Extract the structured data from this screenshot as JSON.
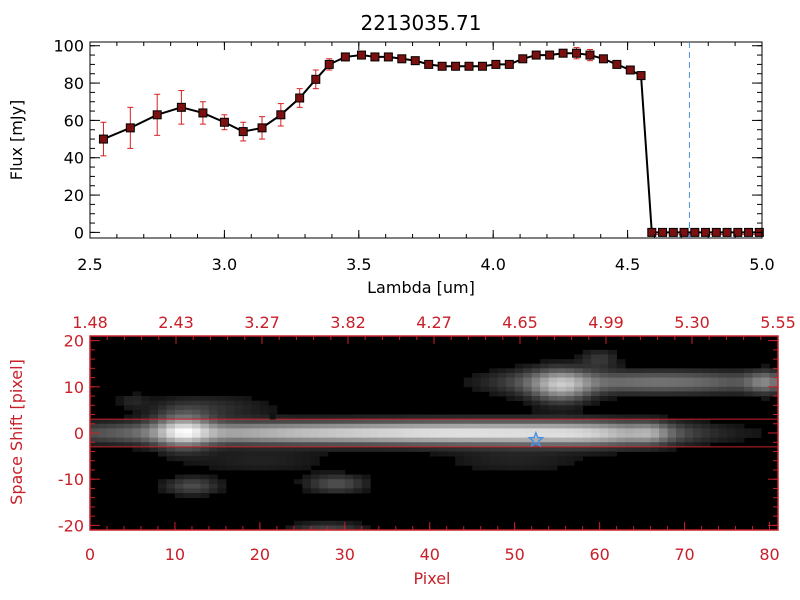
{
  "chart_data": [
    {
      "type": "line",
      "title": "2213035.71",
      "xlabel": "Lambda [um]",
      "ylabel": "Flux [mJy]",
      "xlim": [
        2.5,
        5.0
      ],
      "ylim": [
        -3,
        102
      ],
      "xticks": [
        "2.5",
        "3.0",
        "3.5",
        "4.0",
        "4.5",
        "5.0"
      ],
      "xtick_values": [
        2.5,
        3.0,
        3.5,
        4.0,
        4.5,
        5.0
      ],
      "yticks": [
        "0",
        "20",
        "40",
        "60",
        "80",
        "100"
      ],
      "ytick_values": [
        0,
        20,
        40,
        60,
        80,
        100
      ],
      "vline_x": 4.73,
      "colors": {
        "line": "#000000",
        "marker": "#7a1010",
        "errorbar": "#d42020",
        "vline": "#4a90e2",
        "zero_line": "#d42020"
      },
      "series": [
        {
          "x": [
            2.55,
            2.65,
            2.75,
            2.84,
            2.92,
            3.0,
            3.07,
            3.14,
            3.21,
            3.28,
            3.34,
            3.39,
            3.45,
            3.51,
            3.56,
            3.61,
            3.66,
            3.71,
            3.76,
            3.81,
            3.86,
            3.91,
            3.96,
            4.01,
            4.06,
            4.11,
            4.16,
            4.21,
            4.26,
            4.31,
            4.36,
            4.41,
            4.46,
            4.51,
            4.55,
            4.59,
            4.63,
            4.67,
            4.71,
            4.75,
            4.79,
            4.83,
            4.87,
            4.91,
            4.95,
            4.99
          ],
          "y": [
            50,
            56,
            63,
            67,
            64,
            59,
            54,
            56,
            63,
            72,
            82,
            90,
            94,
            95,
            94,
            94,
            93,
            92,
            90,
            89,
            89,
            89,
            89,
            90,
            90,
            93,
            95,
            95,
            96,
            96,
            95,
            93,
            90,
            87,
            84,
            0,
            0,
            0,
            0,
            0,
            0,
            0,
            0,
            0,
            0,
            0
          ],
          "yerr": [
            9,
            11,
            11,
            9,
            6,
            4,
            5,
            6,
            6,
            5,
            5,
            3,
            2,
            1,
            1,
            1,
            1,
            1,
            1,
            1,
            1,
            1,
            1,
            1,
            1,
            2,
            2,
            2,
            2,
            3,
            3,
            2,
            2,
            2,
            2,
            0,
            0,
            0,
            0,
            0,
            0,
            0,
            0,
            0,
            0,
            0
          ]
        }
      ]
    },
    {
      "type": "heatmap",
      "xlabel": "Pixel",
      "ylabel": "Space Shift [pixel]",
      "xlim": [
        0,
        81
      ],
      "ylim": [
        -21,
        21
      ],
      "xticks": [
        "0",
        "10",
        "20",
        "30",
        "40",
        "50",
        "60",
        "70",
        "80"
      ],
      "xtick_values": [
        0,
        10,
        20,
        30,
        40,
        50,
        60,
        70,
        80
      ],
      "yticks": [
        "-20",
        "-10",
        "0",
        "10",
        "20"
      ],
      "ytick_values": [
        -20,
        -10,
        0,
        10,
        20
      ],
      "top_axis_ticks": [
        "1.48",
        "2.43",
        "3.27",
        "3.82",
        "4.27",
        "4.65",
        "4.99",
        "5.30",
        "5.55"
      ],
      "hlines": [
        3,
        -3
      ],
      "star_marker": {
        "x": 52.5,
        "y": -1.5
      },
      "colors": {
        "axis": "#c8202a",
        "hline": "#c8202a",
        "star": "#4a90e2",
        "background": "#000000"
      },
      "blobs": [
        {
          "x": 11,
          "y": 0.5,
          "sx": 2.2,
          "sy": 2.6,
          "a": 0.55
        },
        {
          "x": 30,
          "y": 0,
          "sx": 20,
          "sy": 1.6,
          "a": 0.72
        },
        {
          "x": 49,
          "y": 0,
          "sx": 10,
          "sy": 1.8,
          "a": 0.35
        },
        {
          "x": 60,
          "y": -0.3,
          "sx": 6,
          "sy": 1.8,
          "a": 0.35
        },
        {
          "x": 66,
          "y": 0,
          "sx": 1.5,
          "sy": 1.6,
          "a": 0.22
        },
        {
          "x": 55.5,
          "y": 10.2,
          "sx": 2.4,
          "sy": 2.4,
          "a": 0.5
        },
        {
          "x": 67,
          "y": 11,
          "sx": 10,
          "sy": 1.6,
          "a": 0.38
        },
        {
          "x": 79.5,
          "y": 11,
          "sx": 1.5,
          "sy": 1.6,
          "a": 0.3
        },
        {
          "x": 60,
          "y": 16,
          "sx": 1.5,
          "sy": 1.4,
          "a": 0.15
        },
        {
          "x": 52,
          "y": 11,
          "sx": 4,
          "sy": 2.0,
          "a": 0.12
        },
        {
          "x": 14,
          "y": 5.5,
          "sx": 5,
          "sy": 1.8,
          "a": 0.12
        },
        {
          "x": 12,
          "y": -11.5,
          "sx": 2.2,
          "sy": 1.3,
          "a": 0.22
        },
        {
          "x": 29,
          "y": -11,
          "sx": 2.4,
          "sy": 1.3,
          "a": 0.24
        },
        {
          "x": 28,
          "y": -20.5,
          "sx": 3,
          "sy": 0.8,
          "a": 0.18
        },
        {
          "x": 5,
          "y": 7,
          "sx": 1.2,
          "sy": 1.2,
          "a": 0.08
        },
        {
          "x": 50,
          "y": -6,
          "sx": 6,
          "sy": 2,
          "a": 0.08
        },
        {
          "x": 20,
          "y": -6,
          "sx": 6,
          "sy": 2,
          "a": 0.08
        }
      ]
    }
  ]
}
